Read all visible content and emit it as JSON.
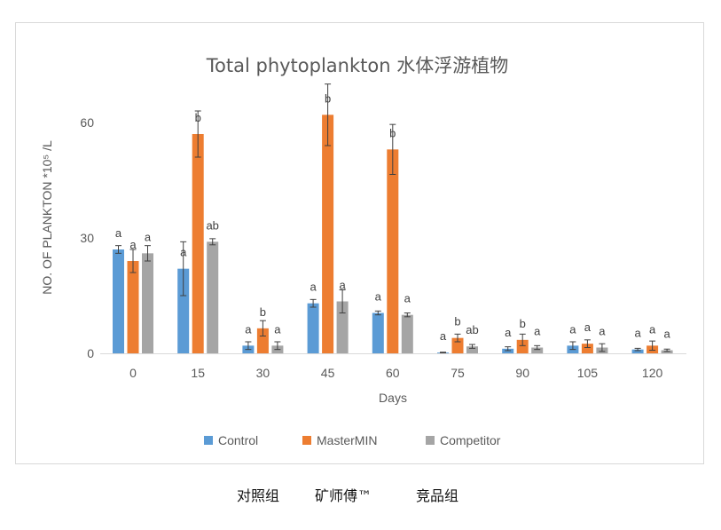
{
  "chart_data": {
    "type": "bar",
    "title": "Total phytoplankton 水体浮游植物",
    "xlabel": "Days",
    "ylabel": "NO. OF PLANKTON *10⁵ /L",
    "categories": [
      "0",
      "15",
      "30",
      "45",
      "60",
      "75",
      "90",
      "105",
      "120"
    ],
    "yticks": [
      "0",
      "30",
      "60"
    ],
    "ylim": [
      0,
      60
    ],
    "grid": false,
    "legend_position": "bottom",
    "colors": {
      "Control": "#5b9bd5",
      "MasterMIN": "#ed7d31",
      "Competitor": "#a5a5a5"
    },
    "series": [
      {
        "name": "Control",
        "values": [
          27,
          22,
          2,
          13,
          10.5,
          0.2,
          1.2,
          2,
          1
        ],
        "errors": [
          1,
          7,
          1,
          1,
          0.5,
          0.1,
          0.5,
          1,
          0.3
        ],
        "significance": [
          "a",
          "a",
          "a",
          "a",
          "a",
          "a",
          "a",
          "a",
          "a"
        ]
      },
      {
        "name": "MasterMIN",
        "values": [
          24,
          57,
          6.5,
          62,
          53,
          4,
          3.5,
          2.5,
          2
        ],
        "errors": [
          3,
          6,
          2,
          8,
          6.5,
          1,
          1.5,
          1,
          1.2
        ],
        "significance": [
          "a",
          "b",
          "b",
          "b",
          "b",
          "b",
          "b",
          "a",
          "a"
        ]
      },
      {
        "name": "Competitor",
        "values": [
          26,
          29,
          2,
          13.5,
          10,
          1.8,
          1.5,
          1.5,
          0.8
        ],
        "errors": [
          2,
          0.8,
          1,
          3,
          0.5,
          0.5,
          0.5,
          1,
          0.3
        ],
        "significance": [
          "a",
          "ab",
          "a",
          "a",
          "a",
          "ab",
          "a",
          "a",
          "a"
        ]
      }
    ]
  },
  "caption": {
    "control_cn": "对照组",
    "mastermin_cn": "矿师傅™",
    "competitor_cn": "竞品组"
  }
}
